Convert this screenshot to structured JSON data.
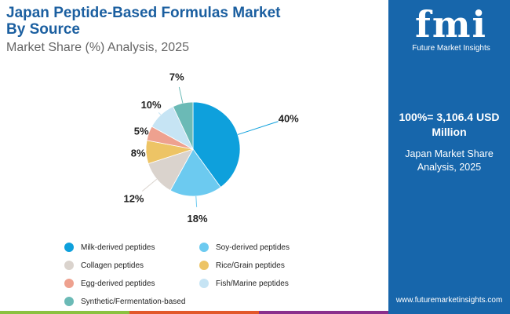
{
  "header": {
    "title_line1": "Japan Peptide-Based Formulas Market",
    "title_line2": "By Source",
    "subtitle": "Market Share (%) Analysis, 2025"
  },
  "chart_data": {
    "type": "pie",
    "categories": [
      "Milk-derived peptides",
      "Soy-derived peptides",
      "Collagen peptides",
      "Rice/Grain peptides",
      "Egg-derived peptides",
      "Fish/Marine peptides",
      "Synthetic/Fermentation-based"
    ],
    "values": [
      40,
      18,
      12,
      8,
      5,
      10,
      7
    ],
    "labels": [
      "40%",
      "18%",
      "12%",
      "8%",
      "5%",
      "10%",
      "7%"
    ],
    "colors": [
      "#0ea0dc",
      "#6ccaf0",
      "#dad3cd",
      "#edc465",
      "#eea18f",
      "#c6e4f4",
      "#6bbab6"
    ],
    "legend_position": "bottom"
  },
  "panel": {
    "logo_text": "fmi",
    "brand": "Future Market Insights",
    "total": "100%= 3,106.4 USD Million",
    "desc": "Japan Market Share Analysis, 2025",
    "url": "www.futuremarketinsights.com"
  },
  "footer_colors": [
    "#8bc140",
    "#e2582a",
    "#8a2f8c",
    "#1766ab"
  ]
}
